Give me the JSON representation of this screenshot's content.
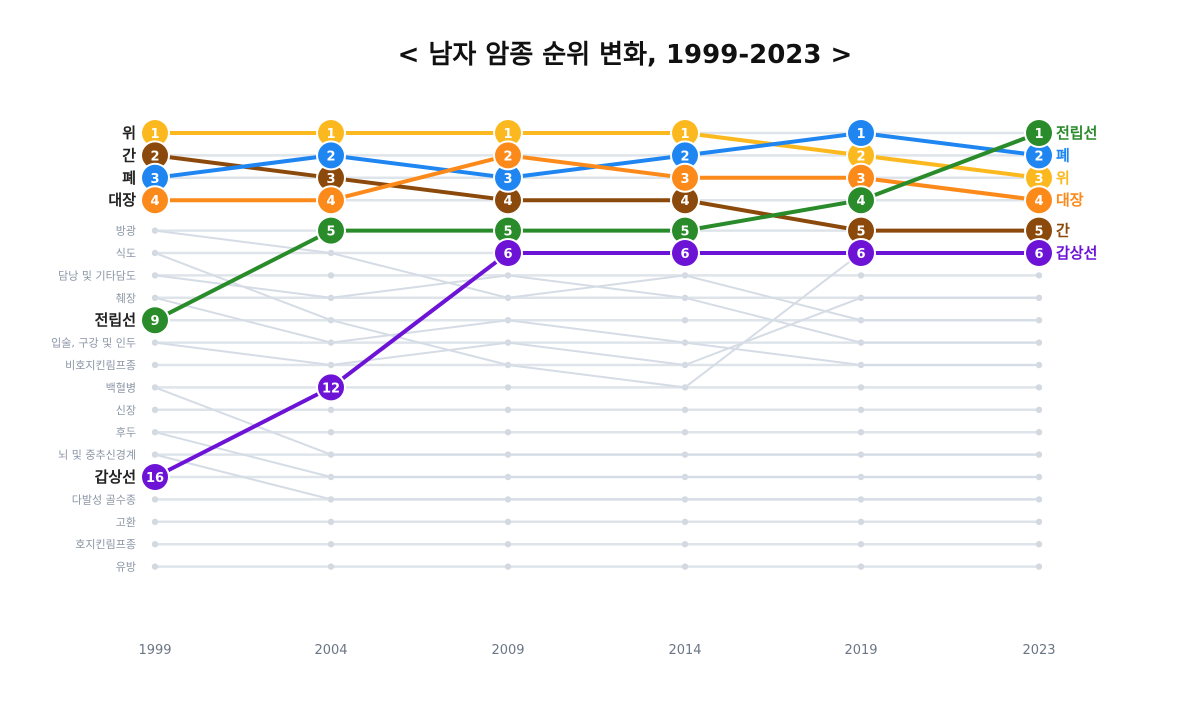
{
  "title": "< 남자 암종 순위 변화, 1999-2023 >",
  "chart_data": {
    "type": "line",
    "chart_style": "bump",
    "title": "< 남자 암종 순위 변화, 1999-2023 >",
    "x": [
      "1999",
      "2004",
      "2009",
      "2014",
      "2019",
      "2023"
    ],
    "ylim": [
      1,
      17
    ],
    "y_reversed": true,
    "grid": true,
    "rank_labels_1999": [
      "위",
      "간",
      "폐",
      "대장",
      "방광",
      "식도",
      "담낭 및 기타담도",
      "췌장",
      "전립선",
      "입술, 구강 및 인두",
      "비호지킨림프종",
      "백혈병",
      "신장",
      "후두",
      "뇌 및 중추신경계",
      "갑상선",
      "다발성 골수종",
      "고환",
      "호지킨림프종",
      "유방"
    ],
    "series": [
      {
        "name": "위",
        "values": [
          1,
          1,
          1,
          1,
          2,
          3
        ],
        "color": "#fcb91f"
      },
      {
        "name": "간",
        "values": [
          2,
          3,
          4,
          4,
          5,
          5
        ],
        "color": "#8b4a0b"
      },
      {
        "name": "폐",
        "values": [
          3,
          2,
          3,
          2,
          1,
          2
        ],
        "color": "#1f86f1"
      },
      {
        "name": "대장",
        "values": [
          4,
          4,
          2,
          3,
          3,
          4
        ],
        "color": "#fc8a1a"
      },
      {
        "name": "전립선",
        "values": [
          9,
          5,
          5,
          5,
          4,
          1
        ],
        "color": "#2a8b2a"
      },
      {
        "name": "갑상선",
        "values": [
          16,
          12,
          6,
          6,
          6,
          6
        ],
        "color": "#6d13d6"
      }
    ],
    "other_series": [
      {
        "values": [
          5,
          6,
          8,
          7,
          9,
          9
        ]
      },
      {
        "values": [
          6,
          9,
          11,
          12,
          6,
          6
        ]
      },
      {
        "values": [
          7,
          8,
          7,
          8,
          10,
          10
        ]
      },
      {
        "values": [
          8,
          10,
          9,
          10,
          11,
          11
        ]
      },
      {
        "values": [
          10,
          11,
          10,
          11,
          8,
          8
        ]
      },
      {
        "values": [
          12,
          15,
          15,
          15,
          15,
          15
        ]
      },
      {
        "values": [
          14,
          16,
          16,
          16,
          16,
          16
        ]
      },
      {
        "values": [
          15,
          17,
          17,
          17,
          17,
          17
        ]
      }
    ]
  }
}
